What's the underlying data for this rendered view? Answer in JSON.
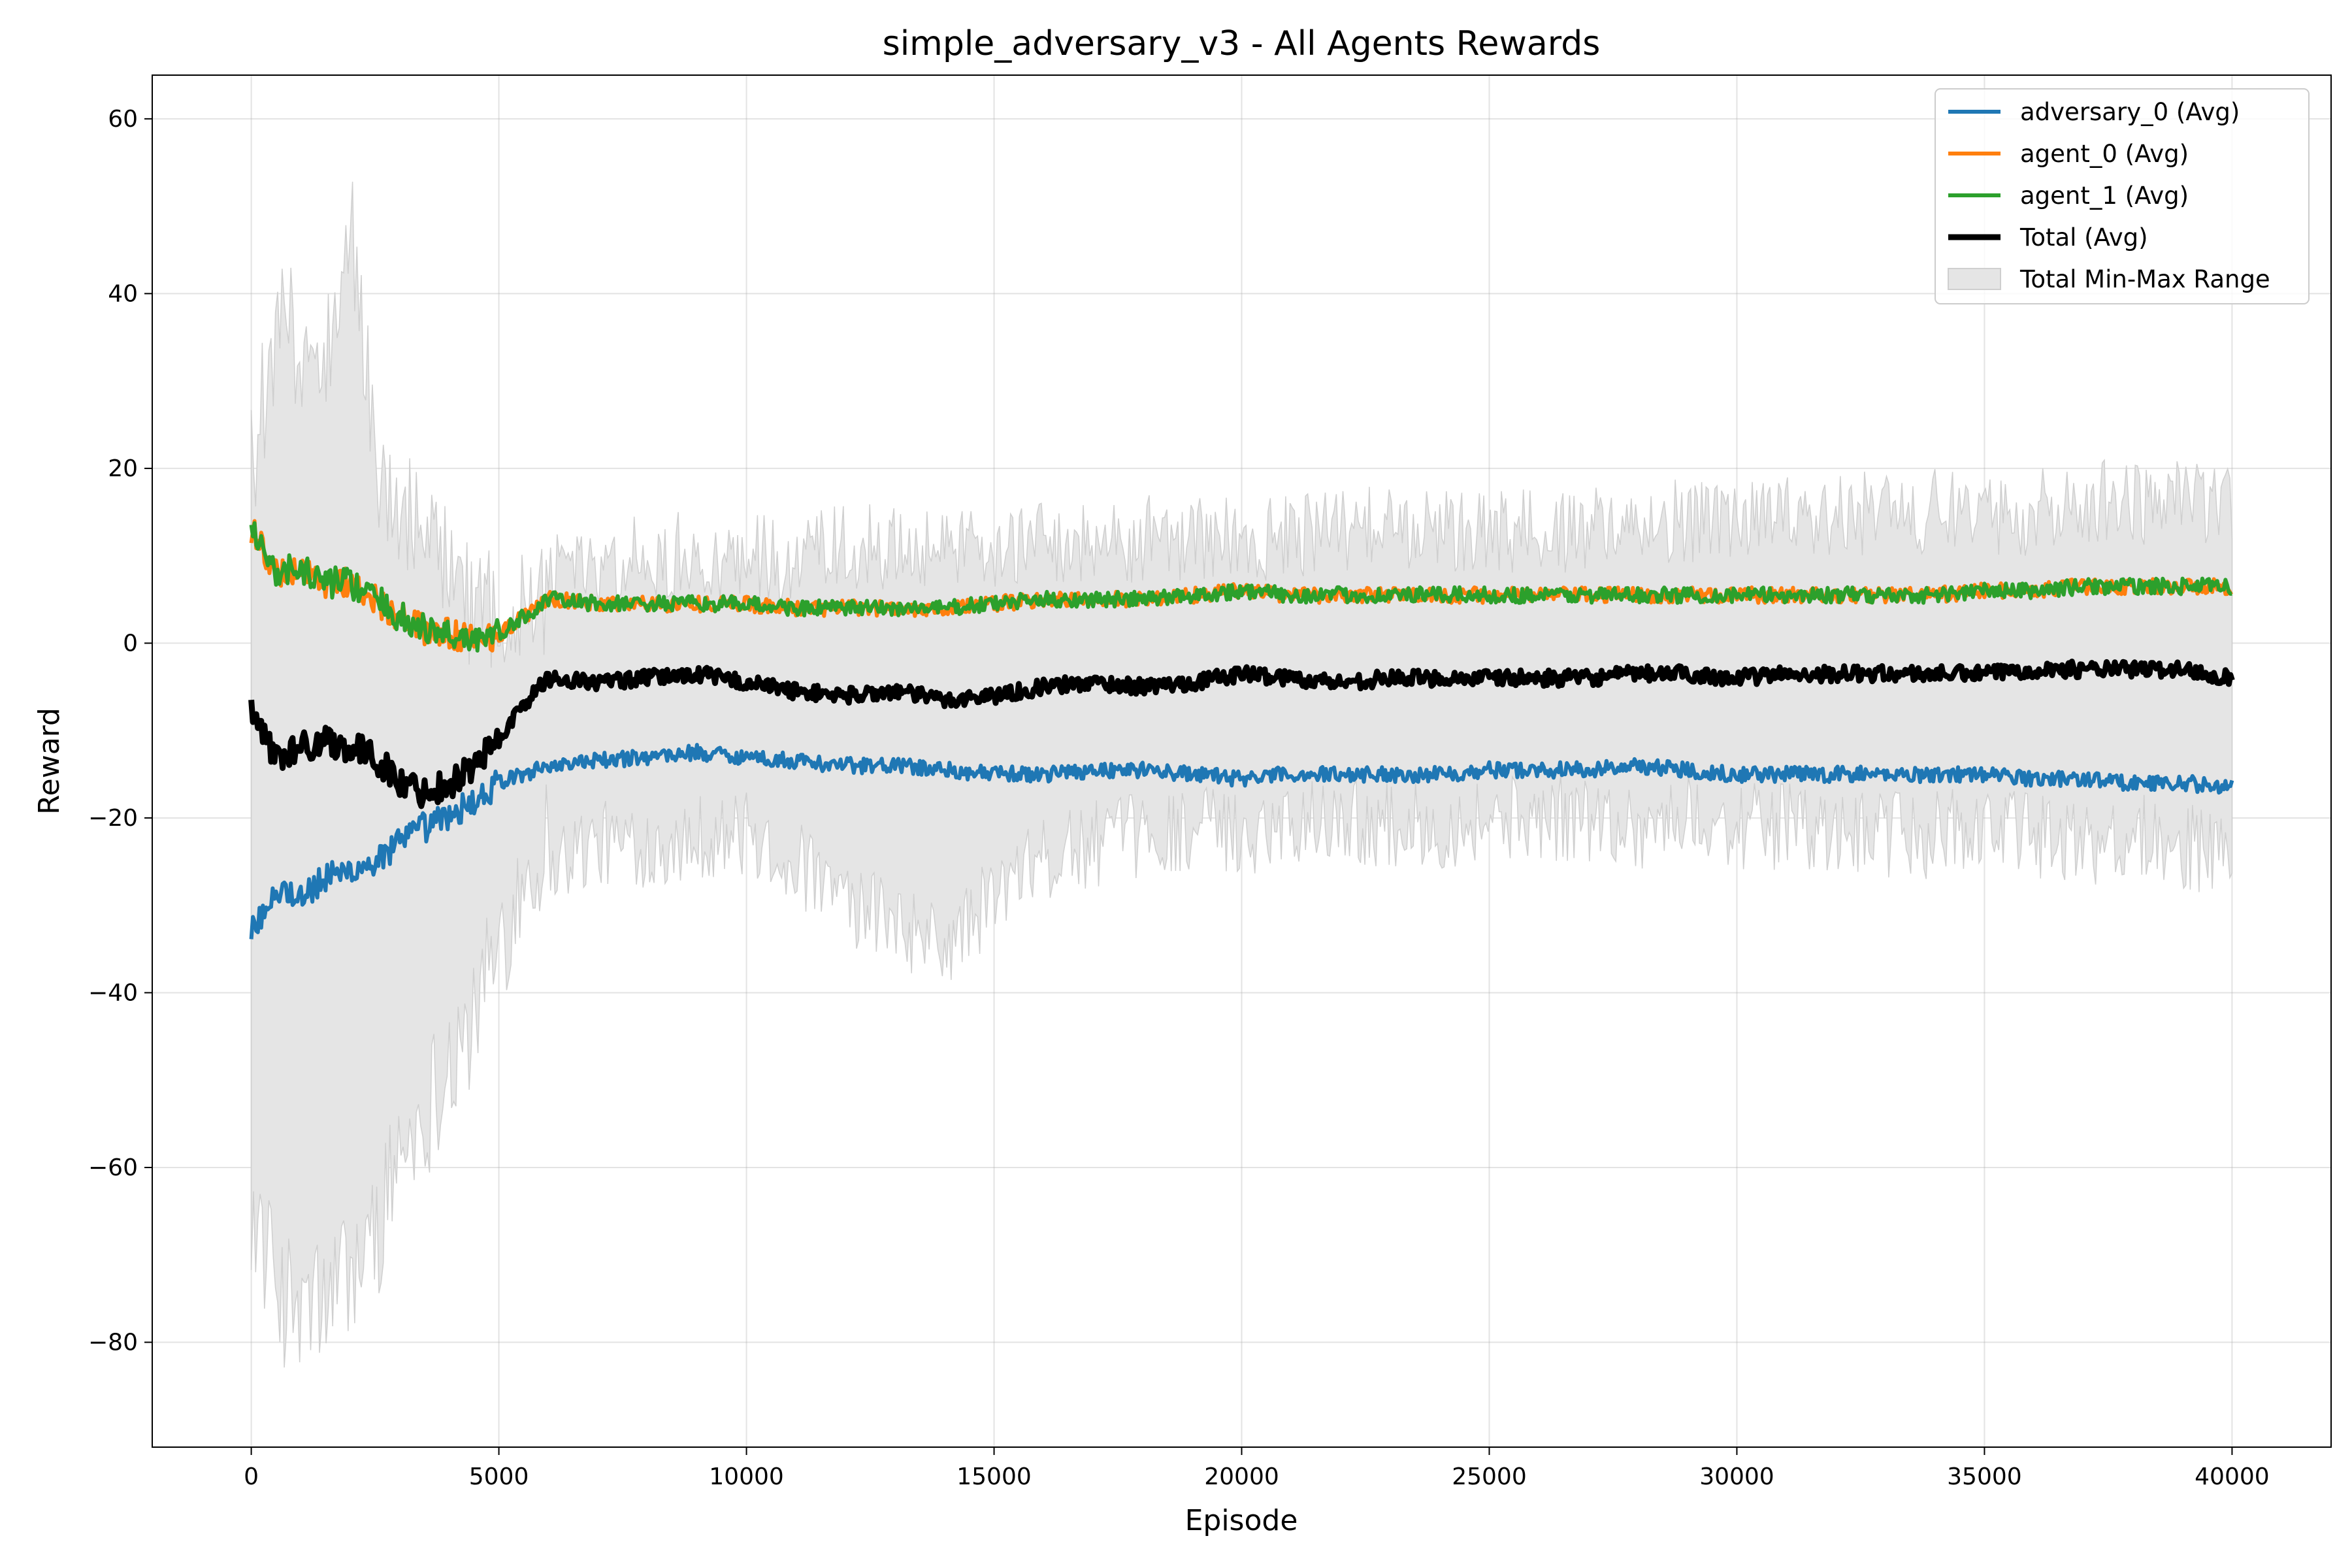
{
  "chart_data": {
    "type": "line",
    "title": "simple_adversary_v3 - All Agents Rewards",
    "xlabel": "Episode",
    "ylabel": "Reward",
    "xlim": [
      -2000,
      42000
    ],
    "ylim": [
      -92,
      65
    ],
    "xticks": [
      0,
      5000,
      10000,
      15000,
      20000,
      25000,
      30000,
      35000,
      40000
    ],
    "xtick_labels": [
      "0",
      "5000",
      "10000",
      "15000",
      "20000",
      "25000",
      "30000",
      "35000",
      "40000"
    ],
    "yticks": [
      -80,
      -60,
      -40,
      -20,
      0,
      20,
      40,
      60
    ],
    "ytick_labels": [
      "−80",
      "−60",
      "−40",
      "−20",
      "0",
      "20",
      "40",
      "60"
    ],
    "grid": true,
    "legend_position": "top-right",
    "x": [
      0,
      500,
      1000,
      1500,
      2000,
      2500,
      3000,
      3500,
      4000,
      4500,
      5000,
      5500,
      6000,
      7000,
      8000,
      9000,
      10000,
      11000,
      12000,
      13000,
      14000,
      15000,
      16000,
      17000,
      18000,
      19000,
      20000,
      21000,
      22000,
      23000,
      24000,
      25000,
      26000,
      27000,
      28000,
      29000,
      30000,
      31000,
      32000,
      33000,
      34000,
      35000,
      36000,
      37000,
      38000,
      39000,
      40000
    ],
    "series": [
      {
        "name": "adversary_0 (Avg)",
        "color": "#1f77b4",
        "values": [
          -33,
          -28,
          -29,
          -27,
          -26,
          -25,
          -23,
          -21,
          -20,
          -18,
          -16,
          -15,
          -14,
          -13.5,
          -13,
          -12.5,
          -13,
          -13.5,
          -14,
          -14,
          -14.5,
          -15,
          -15,
          -14.5,
          -14.5,
          -15,
          -15.5,
          -15,
          -15,
          -15,
          -15,
          -14.5,
          -14.5,
          -14.5,
          -14,
          -14.5,
          -15,
          -15,
          -15,
          -15,
          -15,
          -15,
          -15.5,
          -15.5,
          -16,
          -16,
          -16.5
        ]
      },
      {
        "name": "agent_0 (Avg)",
        "color": "#ff7f0e",
        "values": [
          13,
          8,
          8.5,
          7,
          7,
          5,
          3,
          1.5,
          1,
          0.5,
          1,
          3,
          5,
          4.5,
          4.5,
          4.5,
          4.5,
          4,
          4,
          4,
          4,
          4.5,
          5,
          5,
          5,
          5.5,
          6,
          5.5,
          5.5,
          5.5,
          5.5,
          5.5,
          5.5,
          5.5,
          5.5,
          5.5,
          5.5,
          5.5,
          5.5,
          5.5,
          5.5,
          6,
          6,
          6.5,
          6.5,
          6.5,
          6.5
        ]
      },
      {
        "name": "agent_1 (Avg)",
        "color": "#2ca02c",
        "values": [
          13,
          8,
          8.5,
          7,
          7,
          5,
          3,
          1.5,
          1,
          0.5,
          1,
          3,
          5,
          4.5,
          4.5,
          4.5,
          4.5,
          4,
          4,
          4,
          4,
          4.5,
          5,
          5,
          5,
          5.5,
          6,
          5.5,
          5.5,
          5.5,
          5.5,
          5.5,
          5.5,
          5.5,
          5.5,
          5.5,
          5.5,
          5.5,
          5.5,
          5.5,
          5.5,
          6,
          6,
          6.5,
          6.5,
          6.5,
          6.5
        ]
      },
      {
        "name": "Total (Avg)",
        "color": "#000000",
        "values": [
          -8,
          -13,
          -12,
          -11,
          -12,
          -13,
          -16,
          -17,
          -16,
          -14,
          -11,
          -7,
          -4,
          -4.5,
          -4,
          -3.5,
          -4.5,
          -5.5,
          -6,
          -5.5,
          -6.5,
          -6,
          -5,
          -4.5,
          -5,
          -4.5,
          -3.5,
          -4,
          -4.5,
          -4,
          -4,
          -4,
          -4,
          -4,
          -3.5,
          -3.5,
          -4,
          -3.5,
          -3.5,
          -3.5,
          -3.5,
          -3.5,
          -3,
          -3,
          -3,
          -3,
          -4
        ]
      }
    ],
    "range_band": {
      "name": "Total Min-Max Range",
      "color": "#e5e5e5",
      "min": [
        -72,
        -82,
        -85,
        -83,
        -80,
        -76,
        -66,
        -62,
        -55,
        -52,
        -42,
        -35,
        -30,
        -28,
        -28,
        -27,
        -27,
        -30,
        -35,
        -37,
        -40,
        -34,
        -30,
        -28,
        -27,
        -26,
        -27,
        -25,
        -25,
        -26,
        -26,
        -25,
        -25,
        -25,
        -26,
        -25,
        -26,
        -26,
        -27,
        -27,
        -27,
        -26,
        -27,
        -28,
        -27,
        -28,
        -30
      ],
      "max": [
        27,
        45,
        42,
        40,
        57,
        30,
        25,
        20,
        15,
        13,
        13,
        13,
        14,
        14,
        15,
        15,
        15,
        15,
        16,
        16,
        16,
        16,
        16,
        16,
        17,
        17,
        17,
        17,
        18,
        18,
        18,
        18,
        18,
        18,
        19,
        19,
        19,
        19,
        20,
        20,
        20,
        20,
        20,
        21,
        21,
        21,
        20
      ]
    }
  }
}
